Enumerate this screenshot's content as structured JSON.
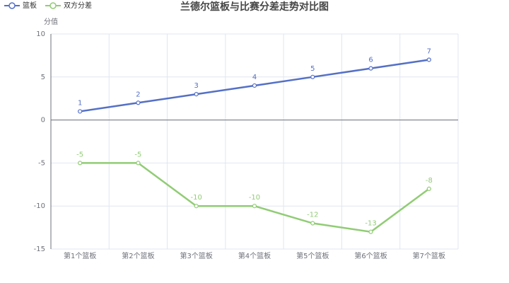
{
  "chart_data": {
    "type": "line",
    "title": "兰德尔篮板与比赛分差走势对比图",
    "y_axis_label": "分值",
    "categories": [
      "第1个篮板",
      "第2个篮板",
      "第3个篮板",
      "第4个篮板",
      "第5个篮板",
      "第6个篮板",
      "第7个篮板"
    ],
    "series": [
      {
        "name": "篮板",
        "color": "#5470c6",
        "values": [
          1,
          2,
          3,
          4,
          5,
          6,
          7
        ]
      },
      {
        "name": "双方分差",
        "color": "#91cc75",
        "values": [
          -5,
          -5,
          -10,
          -10,
          -12,
          -13,
          -8
        ]
      }
    ],
    "ylim": [
      -15,
      10
    ],
    "yticks": [
      -15,
      -10,
      -5,
      0,
      5,
      10
    ],
    "grid": true,
    "legend": "top-left"
  }
}
